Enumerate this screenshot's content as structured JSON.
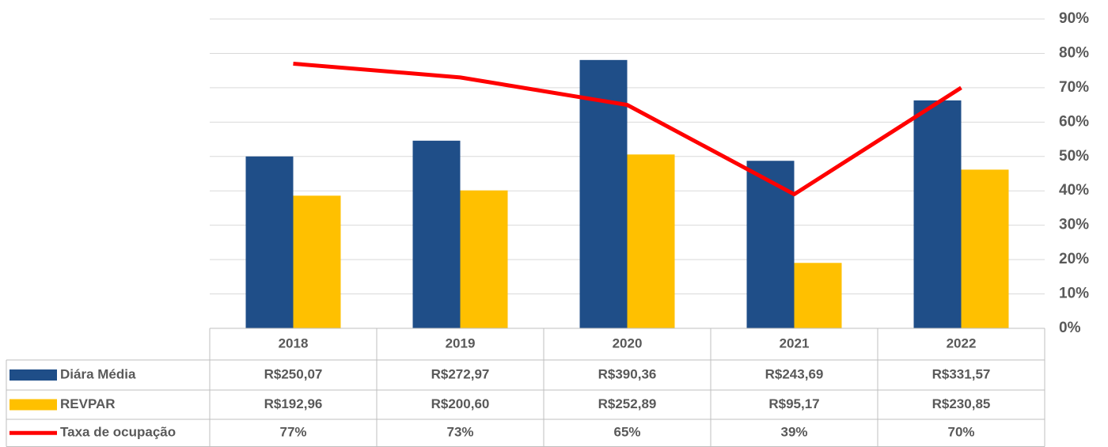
{
  "chart_data": {
    "type": "bar",
    "categories": [
      "2018",
      "2019",
      "2020",
      "2021",
      "2022"
    ],
    "series": [
      {
        "name": "Diára Média",
        "color": "#1f4e88",
        "values": [
          250.07,
          272.97,
          390.36,
          243.69,
          331.57
        ],
        "value_labels": [
          "R$250,07",
          "R$272,97",
          "R$390,36",
          "R$243,69",
          "R$331,57"
        ]
      },
      {
        "name": "REVPAR",
        "color": "#ffc000",
        "values": [
          192.96,
          200.6,
          252.89,
          95.17,
          230.85
        ],
        "value_labels": [
          "R$192,96",
          "R$200,60",
          "R$252,89",
          "R$95,17",
          "R$230,85"
        ]
      },
      {
        "name": "Taxa de ocupação",
        "color": "#ff0000",
        "type": "line",
        "axis": "y2",
        "values": [
          77,
          73,
          65,
          39,
          70
        ],
        "value_labels": [
          "77%",
          "73%",
          "65%",
          "39%",
          "70%"
        ]
      }
    ],
    "ylim": [
      0,
      450
    ],
    "y2lim": [
      0,
      90
    ],
    "y2ticks": [
      {
        "value": 0,
        "label": "0%"
      },
      {
        "value": 10,
        "label": "10%"
      },
      {
        "value": 20,
        "label": "20%"
      },
      {
        "value": 30,
        "label": "30%"
      },
      {
        "value": 40,
        "label": "40%"
      },
      {
        "value": 50,
        "label": "50%"
      },
      {
        "value": 60,
        "label": "60%"
      },
      {
        "value": 70,
        "label": "70%"
      },
      {
        "value": 80,
        "label": "80%"
      },
      {
        "value": 90,
        "label": "90%"
      }
    ],
    "grid": true
  }
}
